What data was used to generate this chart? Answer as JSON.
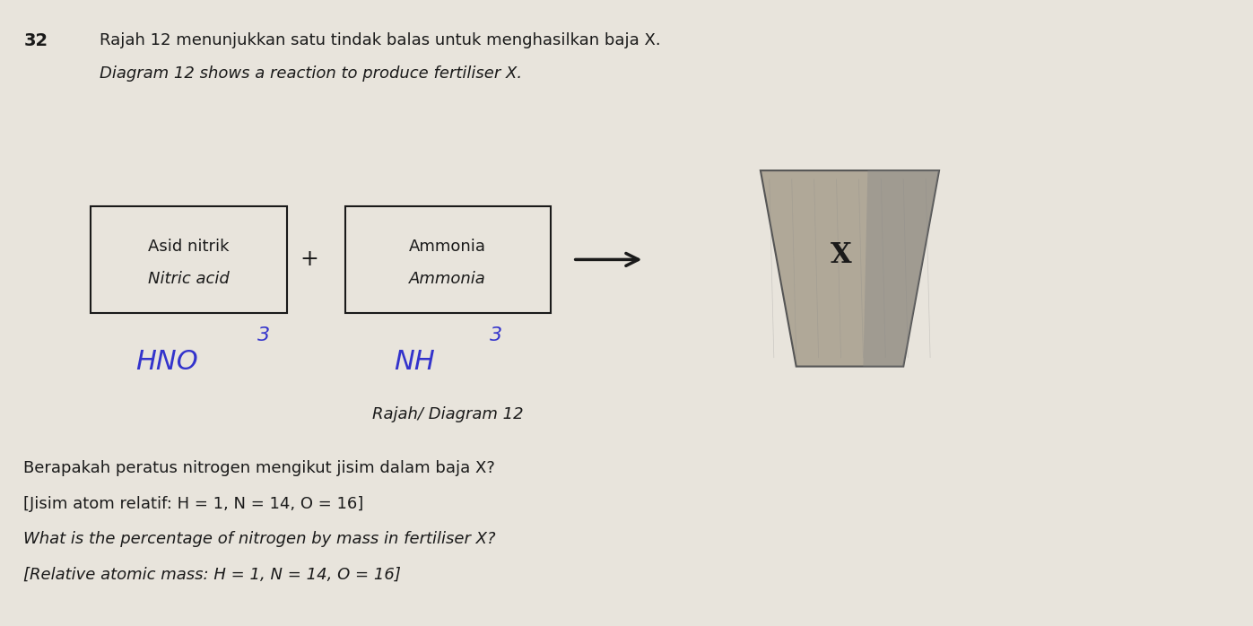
{
  "background_color": "#e8e4dc",
  "question_number": "32",
  "title_line1": "Rajah 12 menunjukkan satu tindak balas untuk menghasilkan baja X.",
  "title_line2": "Diagram 12 shows a reaction to produce fertiliser X.",
  "box1_line1": "Asid nitrik",
  "box1_line2": "Nitric acid",
  "box2_line1": "Ammonia",
  "box2_line2": "Ammonia",
  "formula1": "HNO",
  "formula1_sub": "3",
  "formula2": "NH",
  "formula2_sub": "3",
  "diagram_label": "Rajah/ Diagram 12",
  "q_line1": "Berapakah peratus nitrogen mengikut jisim dalam baja X?",
  "q_line2": "[Jisim atom relatif: H = 1, N = 14, O = 16]",
  "q_line3": "What is the percentage of nitrogen by mass in fertiliser X?",
  "q_line4": "[Relative atomic mass: H = 1, N = 14, O = 16]",
  "formula_color": "#3333cc",
  "text_color": "#1a1a1a",
  "box_color": "#1a1a1a",
  "bag_color": "#888888"
}
